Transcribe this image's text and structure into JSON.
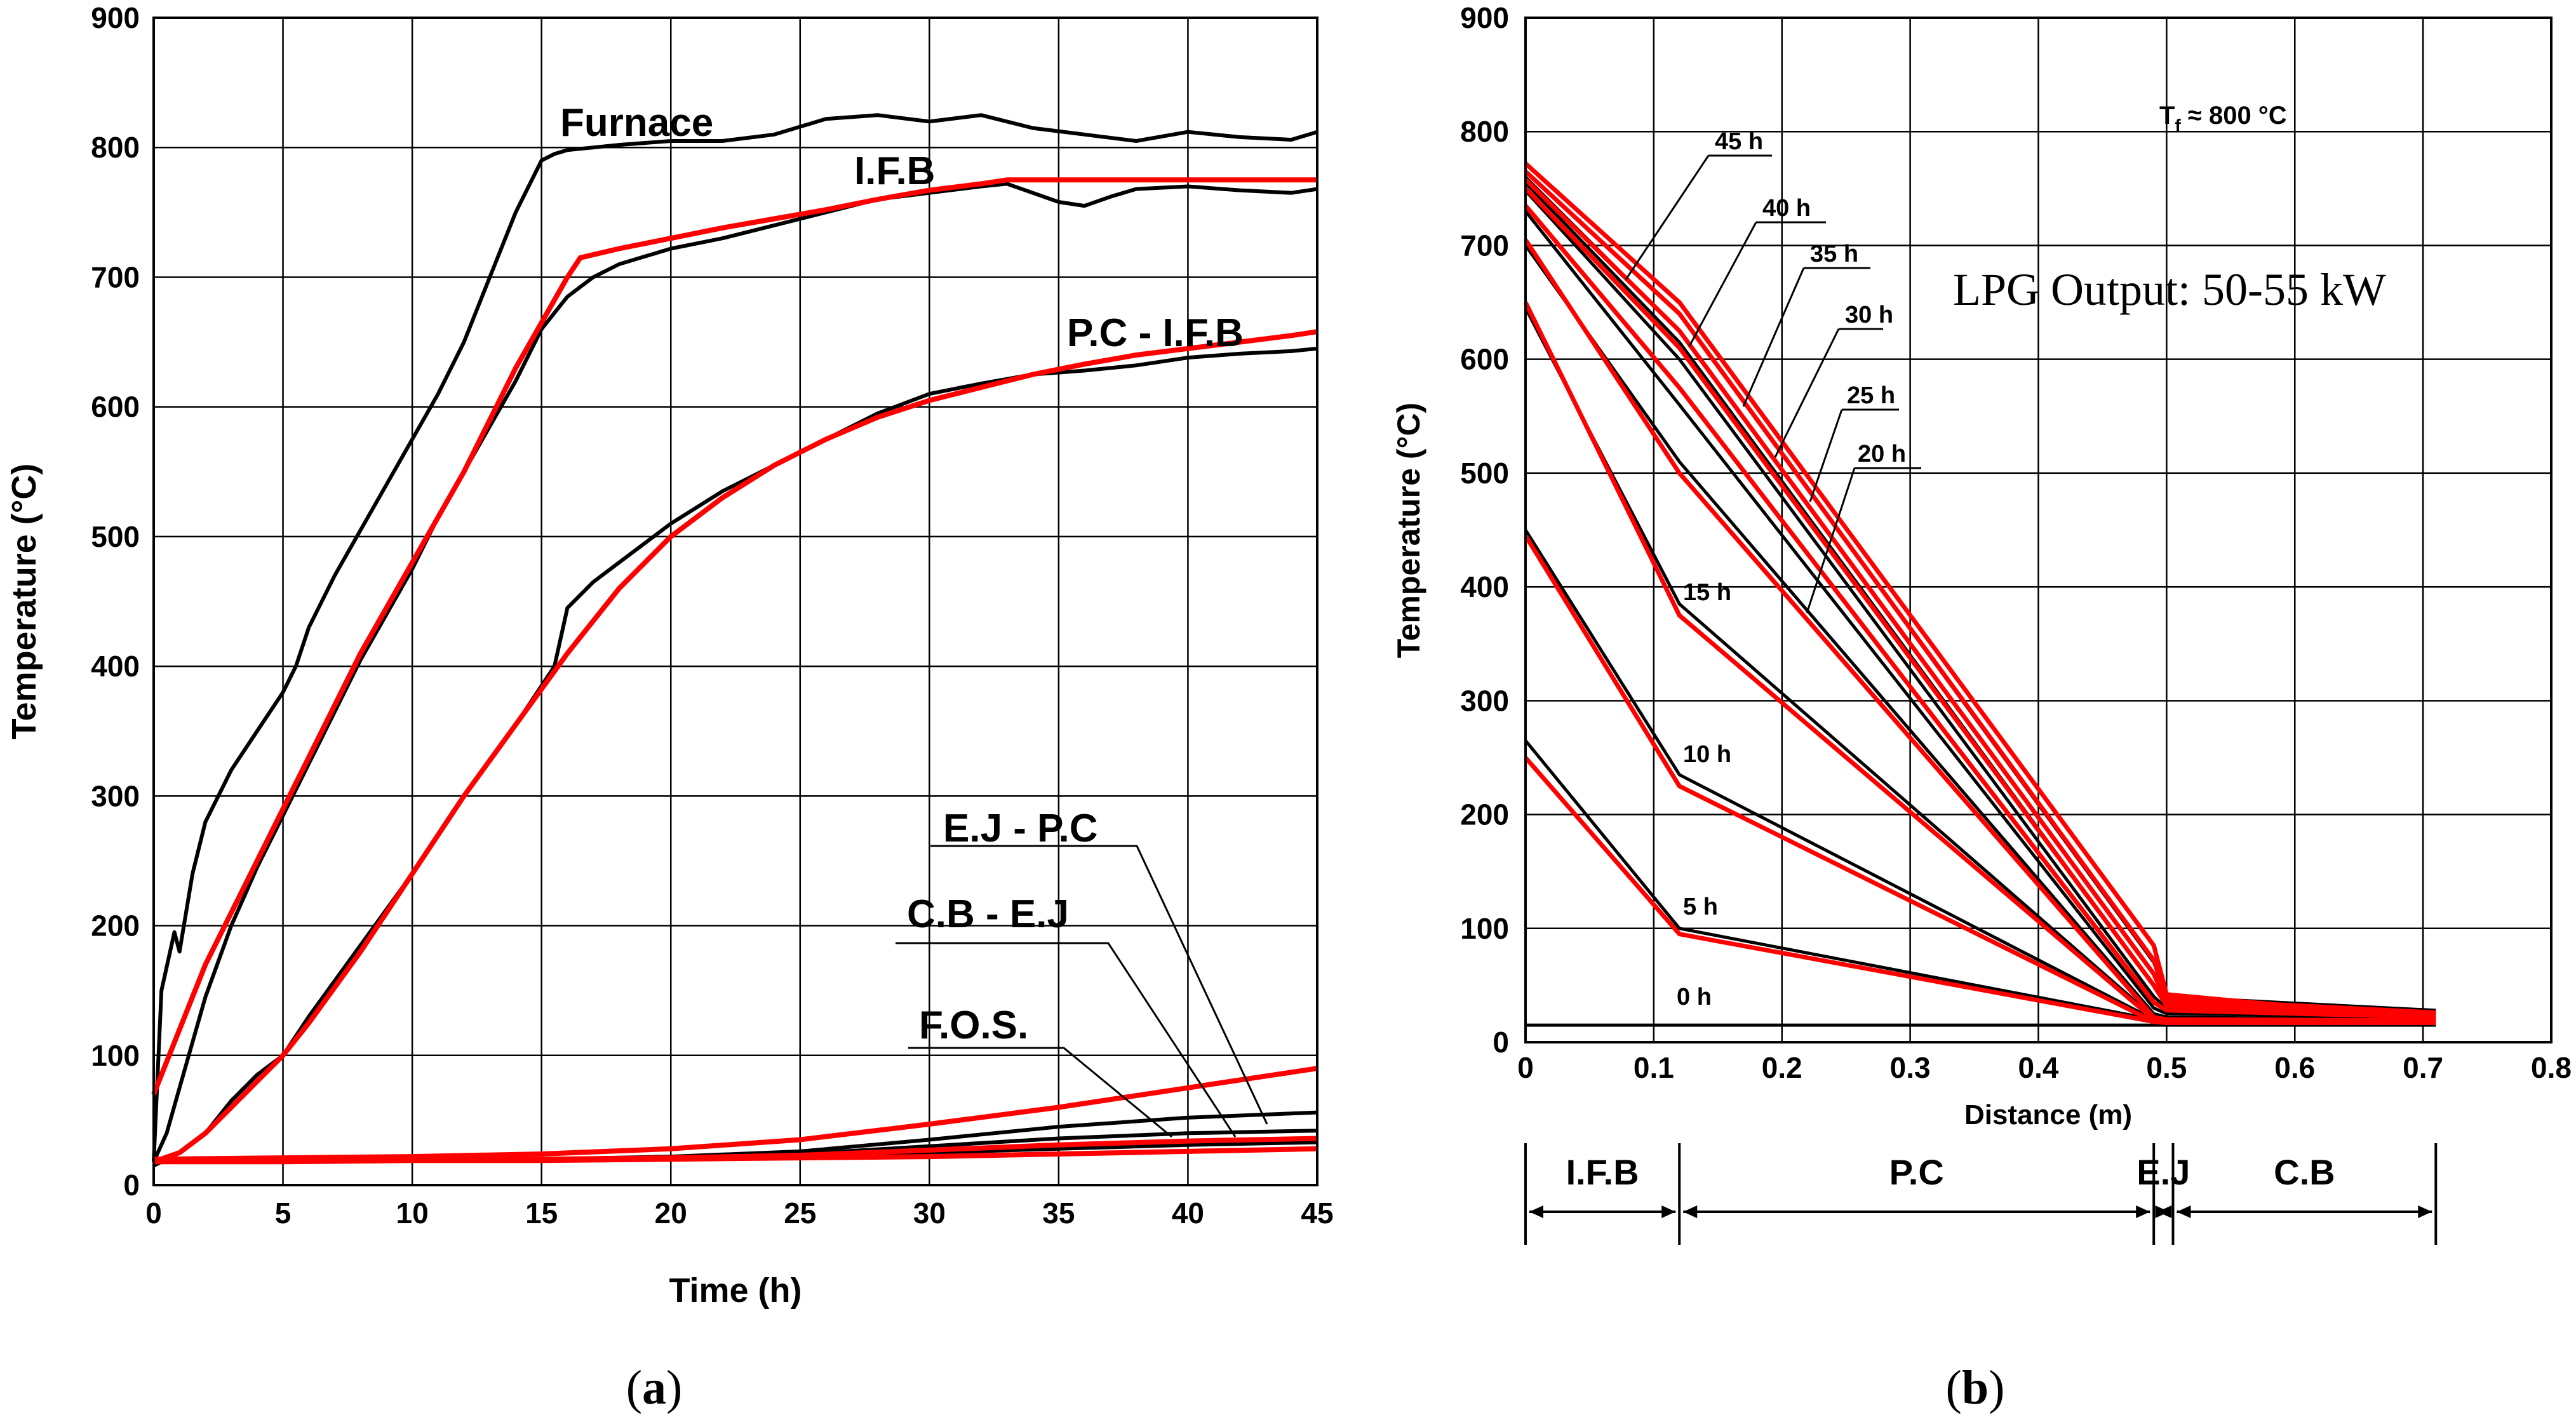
{
  "colors": {
    "measured": "#000000",
    "simulated": "#ff0000"
  },
  "chart_data": [
    {
      "id": "a",
      "type": "line",
      "caption": "a",
      "xlabel": "Time (h)",
      "ylabel": "Temperature (°C)",
      "xlim": [
        0,
        45
      ],
      "ylim": [
        0,
        900
      ],
      "xticks": [
        0,
        5,
        10,
        15,
        20,
        25,
        30,
        35,
        40,
        45
      ],
      "yticks": [
        0,
        100,
        200,
        300,
        400,
        500,
        600,
        700,
        800,
        900
      ],
      "grid": true,
      "annotations": [
        "Furnace",
        "I.F.B",
        "P.C - I.F.B",
        "E.J - P.C",
        "C.B - E.J",
        "F.O.S."
      ],
      "series": [
        {
          "name": "Furnace (measured)",
          "kind": "measured",
          "x": [
            0,
            0.3,
            0.8,
            1.0,
            1.5,
            2,
            3,
            4,
            5,
            5.5,
            6,
            7,
            8,
            9,
            10,
            11,
            12,
            13,
            14,
            15,
            15.5,
            16,
            18,
            20,
            22,
            24,
            26,
            28,
            30,
            32,
            34,
            36,
            38,
            40,
            42,
            44,
            45
          ],
          "y": [
            18,
            150,
            195,
            180,
            240,
            280,
            320,
            350,
            380,
            400,
            430,
            470,
            505,
            540,
            575,
            610,
            650,
            700,
            750,
            790,
            795,
            798,
            802,
            805,
            805,
            810,
            822,
            825,
            820,
            825,
            815,
            810,
            805,
            812,
            808,
            806,
            812
          ]
        },
        {
          "name": "I.F.B (measured)",
          "kind": "measured",
          "x": [
            0,
            0.5,
            1,
            2,
            3,
            4,
            5,
            6,
            7,
            8,
            9,
            10,
            11,
            12,
            13,
            14,
            15,
            16,
            17,
            18,
            20,
            22,
            24,
            26,
            28,
            30,
            32,
            33,
            34,
            35,
            36,
            37,
            38,
            40,
            42,
            44,
            45
          ],
          "y": [
            18,
            40,
            75,
            145,
            200,
            245,
            285,
            325,
            365,
            405,
            440,
            475,
            515,
            550,
            585,
            620,
            660,
            685,
            700,
            710,
            722,
            730,
            740,
            750,
            760,
            765,
            770,
            772,
            765,
            758,
            755,
            762,
            768,
            770,
            767,
            765,
            768
          ]
        },
        {
          "name": "I.F.B (simulated)",
          "kind": "simulated",
          "x": [
            0,
            2,
            4,
            6,
            8,
            10,
            12,
            14,
            16,
            16.5,
            18,
            20,
            22,
            24,
            26,
            28,
            30,
            32,
            33,
            35,
            40,
            45
          ],
          "y": [
            70,
            170,
            250,
            330,
            410,
            480,
            550,
            630,
            700,
            715,
            722,
            730,
            738,
            745,
            752,
            760,
            767,
            772,
            775,
            775,
            775,
            775
          ]
        },
        {
          "name": "P.C - I.F.B (measured)",
          "kind": "measured",
          "x": [
            0,
            1,
            2,
            3,
            4,
            5,
            6,
            8,
            10,
            12,
            14,
            15.5,
            16,
            17,
            18,
            20,
            22,
            24,
            26,
            28,
            30,
            32,
            34,
            36,
            38,
            40,
            42,
            44,
            45
          ],
          "y": [
            15,
            25,
            40,
            65,
            85,
            100,
            130,
            185,
            240,
            300,
            355,
            400,
            445,
            465,
            480,
            510,
            535,
            555,
            575,
            595,
            610,
            618,
            625,
            628,
            632,
            638,
            641,
            643,
            645
          ]
        },
        {
          "name": "P.C - I.F.B (simulated)",
          "kind": "simulated",
          "x": [
            0,
            1,
            2,
            3,
            4,
            5,
            6,
            8,
            10,
            12,
            14,
            16,
            18,
            20,
            22,
            24,
            26,
            28,
            30,
            32,
            34,
            36,
            38,
            40,
            42,
            44,
            45
          ],
          "y": [
            18,
            25,
            40,
            60,
            80,
            100,
            125,
            180,
            240,
            300,
            355,
            410,
            460,
            500,
            530,
            555,
            575,
            592,
            605,
            615,
            625,
            633,
            640,
            645,
            650,
            655,
            658
          ]
        },
        {
          "name": "E.J - P.C (measured)",
          "kind": "measured",
          "x": [
            0,
            5,
            10,
            15,
            20,
            25,
            30,
            35,
            40,
            45
          ],
          "y": [
            18,
            20,
            20,
            20,
            22,
            26,
            35,
            45,
            52,
            56
          ]
        },
        {
          "name": "E.J - P.C (simulated)",
          "kind": "simulated",
          "x": [
            0,
            5,
            10,
            15,
            20,
            25,
            30,
            35,
            40,
            45
          ],
          "y": [
            20,
            21,
            22,
            24,
            28,
            35,
            47,
            60,
            75,
            90
          ]
        },
        {
          "name": "C.B - E.J (measured)",
          "kind": "measured",
          "x": [
            0,
            5,
            10,
            15,
            20,
            25,
            30,
            35,
            40,
            45
          ],
          "y": [
            18,
            19,
            20,
            20,
            21,
            24,
            30,
            36,
            40,
            42
          ]
        },
        {
          "name": "C.B - E.J (simulated)",
          "kind": "simulated",
          "x": [
            0,
            5,
            10,
            15,
            20,
            25,
            30,
            35,
            40,
            45
          ],
          "y": [
            18,
            19,
            20,
            20,
            21,
            23,
            27,
            31,
            34,
            36
          ]
        },
        {
          "name": "F.O.S. (measured)",
          "kind": "measured",
          "x": [
            0,
            5,
            10,
            15,
            20,
            25,
            30,
            35,
            40,
            45
          ],
          "y": [
            18,
            19,
            19,
            20,
            20,
            22,
            25,
            28,
            31,
            33
          ]
        },
        {
          "name": "F.O.S. (simulated)",
          "kind": "simulated",
          "x": [
            0,
            5,
            10,
            15,
            20,
            25,
            30,
            35,
            40,
            45
          ],
          "y": [
            18,
            18,
            19,
            19,
            20,
            21,
            22,
            24,
            26,
            28
          ]
        }
      ]
    },
    {
      "id": "b",
      "type": "line",
      "caption": "b",
      "xlabel": "Distance (m)",
      "ylabel": "Temperature (°C)",
      "xlim": [
        0,
        0.8
      ],
      "ylim": [
        0,
        900
      ],
      "xticks": [
        0,
        0.1,
        0.2,
        0.3,
        0.4,
        0.5,
        0.6,
        0.7,
        0.8
      ],
      "yticks": [
        0,
        100,
        200,
        300,
        400,
        500,
        600,
        700,
        800,
        900
      ],
      "grid": true,
      "title_note": "Tf ≈ 800 °C",
      "title_note_main": "T",
      "title_note_sub": "f",
      "title_note_rest": " ≈ 800 °C",
      "text_box": "LPG Output: 50-55 kW",
      "hour_labels": [
        "45 h",
        "40 h",
        "35 h",
        "30 h",
        "25 h",
        "20 h",
        "15 h",
        "10 h",
        "5 h",
        "0 h"
      ],
      "layers": [
        {
          "label": "I.F.B",
          "from": 0,
          "to": 0.12
        },
        {
          "label": "P.C",
          "from": 0.12,
          "to": 0.49
        },
        {
          "label": "E.J",
          "from": 0.49,
          "to": 0.505
        },
        {
          "label": "C.B",
          "from": 0.505,
          "to": 0.71
        }
      ],
      "series": [
        {
          "name": "0 h measured",
          "kind": "measured",
          "x": [
            0,
            0.12,
            0.5,
            0.71
          ],
          "y": [
            15,
            15,
            15,
            15
          ]
        },
        {
          "name": "5 h measured",
          "kind": "measured",
          "x": [
            0,
            0.12,
            0.49,
            0.5,
            0.71
          ],
          "y": [
            265,
            100,
            20,
            18,
            18
          ]
        },
        {
          "name": "5 h simulated",
          "kind": "simulated",
          "x": [
            0,
            0.12,
            0.49,
            0.5,
            0.71
          ],
          "y": [
            250,
            95,
            18,
            17,
            17
          ]
        },
        {
          "name": "10 h measured",
          "kind": "measured",
          "x": [
            0,
            0.12,
            0.49,
            0.5,
            0.71
          ],
          "y": [
            450,
            235,
            20,
            18,
            18
          ]
        },
        {
          "name": "10 h simulated",
          "kind": "simulated",
          "x": [
            0,
            0.12,
            0.49,
            0.5,
            0.71
          ],
          "y": [
            445,
            225,
            18,
            17,
            17
          ]
        },
        {
          "name": "15 h measured",
          "kind": "measured",
          "x": [
            0,
            0.12,
            0.49,
            0.5,
            0.71
          ],
          "y": [
            645,
            385,
            22,
            20,
            19
          ]
        },
        {
          "name": "15 h simulated",
          "kind": "simulated",
          "x": [
            0,
            0.12,
            0.49,
            0.5,
            0.71
          ],
          "y": [
            650,
            375,
            20,
            19,
            18
          ]
        },
        {
          "name": "20 h measured",
          "kind": "measured",
          "x": [
            0,
            0.12,
            0.49,
            0.5,
            0.71
          ],
          "y": [
            700,
            510,
            25,
            22,
            20
          ]
        },
        {
          "name": "20 h simulated",
          "kind": "simulated",
          "x": [
            0,
            0.12,
            0.49,
            0.5,
            0.71
          ],
          "y": [
            705,
            500,
            22,
            20,
            19
          ]
        },
        {
          "name": "25 h measured",
          "kind": "measured",
          "x": [
            0,
            0.12,
            0.49,
            0.5,
            0.71
          ],
          "y": [
            730,
            560,
            30,
            25,
            22
          ]
        },
        {
          "name": "25 h simulated",
          "kind": "simulated",
          "x": [
            0,
            0.12,
            0.49,
            0.5,
            0.71
          ],
          "y": [
            735,
            575,
            35,
            28,
            22
          ]
        },
        {
          "name": "30 h measured",
          "kind": "measured",
          "x": [
            0,
            0.12,
            0.49,
            0.5,
            0.71
          ],
          "y": [
            748,
            600,
            40,
            30,
            24
          ]
        },
        {
          "name": "30 h simulated",
          "kind": "simulated",
          "x": [
            0,
            0.12,
            0.49,
            0.5,
            0.71
          ],
          "y": [
            750,
            610,
            50,
            32,
            24
          ]
        },
        {
          "name": "35 h measured",
          "kind": "measured",
          "x": [
            0,
            0.12,
            0.49,
            0.5,
            0.71
          ],
          "y": [
            755,
            615,
            50,
            33,
            25
          ]
        },
        {
          "name": "35 h simulated",
          "kind": "simulated",
          "x": [
            0,
            0.12,
            0.49,
            0.5,
            0.71
          ],
          "y": [
            758,
            625,
            60,
            35,
            25
          ]
        },
        {
          "name": "40 h measured",
          "kind": "measured",
          "x": [
            0,
            0.12,
            0.49,
            0.5,
            0.71
          ],
          "y": [
            760,
            625,
            60,
            36,
            26
          ]
        },
        {
          "name": "40 h simulated",
          "kind": "simulated",
          "x": [
            0,
            0.12,
            0.49,
            0.5,
            0.71
          ],
          "y": [
            765,
            640,
            72,
            38,
            26
          ]
        },
        {
          "name": "45 h measured",
          "kind": "measured",
          "x": [
            0,
            0.12,
            0.49,
            0.5,
            0.71
          ],
          "y": [
            765,
            640,
            70,
            40,
            28
          ]
        },
        {
          "name": "45 h simulated",
          "kind": "simulated",
          "x": [
            0,
            0.12,
            0.49,
            0.5,
            0.71
          ],
          "y": [
            772,
            650,
            85,
            42,
            20
          ]
        }
      ]
    }
  ]
}
